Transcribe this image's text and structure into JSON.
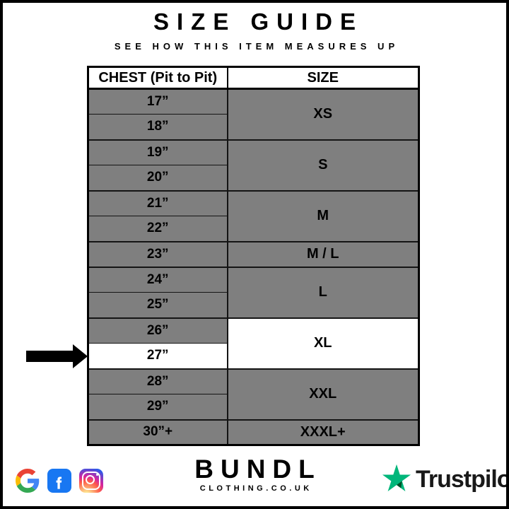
{
  "page": {
    "title": "SIZE GUIDE",
    "subtitle": "SEE HOW THIS ITEM MEASURES UP"
  },
  "table": {
    "columns": [
      "CHEST (Pit to Pit)",
      "SIZE"
    ],
    "groups": [
      {
        "size": "XS",
        "chest": [
          "17”",
          "18”"
        ]
      },
      {
        "size": "S",
        "chest": [
          "19”",
          "20”"
        ]
      },
      {
        "size": "M",
        "chest": [
          "21”",
          "22”"
        ]
      },
      {
        "size": "M / L",
        "chest": [
          "23”"
        ]
      },
      {
        "size": "L",
        "chest": [
          "24”",
          "25”"
        ]
      },
      {
        "size": "XL",
        "chest": [
          "26”",
          "27”"
        ],
        "highlighted": true,
        "highlighted_chest": "27”"
      },
      {
        "size": "XXL",
        "chest": [
          "28”",
          "29”"
        ]
      },
      {
        "size": "XXXL+",
        "chest": [
          "30”+"
        ]
      }
    ]
  },
  "colors": {
    "cell_gray": "#7f7f7f",
    "highlight_white": "#ffffff",
    "border_black": "#000000",
    "facebook_blue": "#1877F2",
    "google_blue": "#4285F4",
    "google_red": "#EA4335",
    "google_yellow": "#FBBC05",
    "google_green": "#34A853",
    "trustpilot_green": "#00B67A",
    "trustpilot_dark_green": "#005128"
  },
  "footer": {
    "social_icons": [
      "google-icon",
      "facebook-icon",
      "instagram-icon"
    ],
    "brand_name": "BUNDL",
    "brand_domain": "CLOTHING.CO.UK",
    "trustpilot_label": "Trustpilot"
  }
}
